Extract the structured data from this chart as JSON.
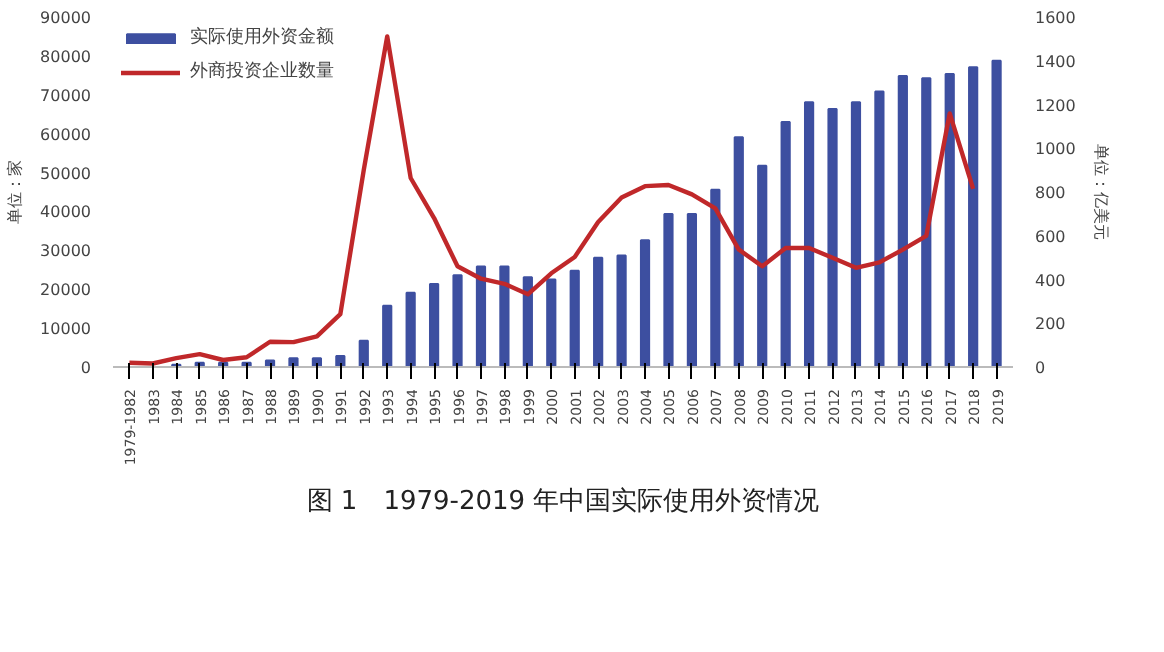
{
  "chart_data": {
    "type": "bar",
    "title": "图 1　1979-2019 年中国实际使用外资情况",
    "ylabel": "单位：家",
    "y2label": "单位：亿美元",
    "categories": [
      "1979-1982",
      "1983",
      "1984",
      "1985",
      "1986",
      "1987",
      "1988",
      "1989",
      "1990",
      "1991",
      "1992",
      "1993",
      "1994",
      "1995",
      "1996",
      "1997",
      "1998",
      "1999",
      "2000",
      "2001",
      "2002",
      "2003",
      "2004",
      "2005",
      "2006",
      "2007",
      "2008",
      "2009",
      "2010",
      "2011",
      "2012",
      "2013",
      "2014",
      "2015",
      "2016",
      "2017",
      "2018",
      "2019"
    ],
    "series": [
      {
        "name": "实际使用外资金额",
        "axis": "y2",
        "color": "#3d4fa0",
        "values": [
          null,
          null,
          10,
          20,
          20,
          20,
          30,
          40,
          40,
          50,
          120,
          280,
          340,
          380,
          420,
          460,
          460,
          410,
          400,
          440,
          500,
          510,
          580,
          700,
          700,
          810,
          1050,
          920,
          1120,
          1210,
          1180,
          1210,
          1260,
          1330,
          1320,
          1340,
          1370,
          1400
        ]
      },
      {
        "name": "外商投资企业数量",
        "type": "line",
        "color": "#c0282a",
        "values": [
          1100,
          900,
          2300,
          3300,
          1800,
          2500,
          6500,
          6400,
          7900,
          13600,
          50700,
          85000,
          48600,
          38300,
          25900,
          22700,
          21400,
          18700,
          24100,
          28300,
          37300,
          43600,
          46500,
          46800,
          44400,
          40800,
          30200,
          25900,
          30600,
          30600,
          28100,
          25500,
          26900,
          30200,
          33700,
          65200,
          45800,
          null
        ]
      }
    ],
    "ylim": [
      0,
      90000
    ],
    "yticks": [
      0,
      10000,
      20000,
      30000,
      40000,
      50000,
      60000,
      70000,
      80000,
      90000
    ],
    "y2lim": [
      0,
      1600
    ],
    "y2ticks": [
      0,
      200,
      400,
      600,
      800,
      1000,
      1200,
      1400,
      1600
    ],
    "grid": false,
    "legend": "top left"
  }
}
